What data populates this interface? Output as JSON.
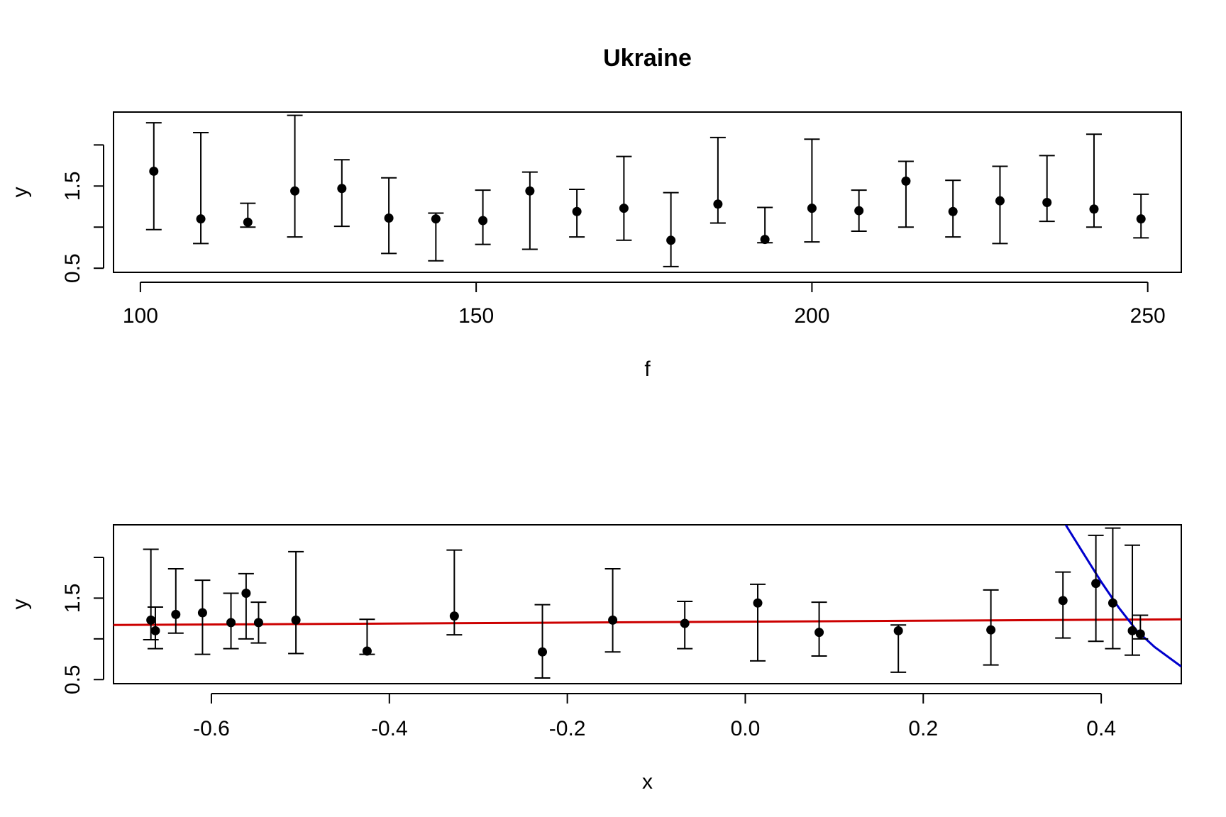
{
  "chart_data": [
    {
      "type": "scatter",
      "title": "Ukraine",
      "xlabel": "f",
      "ylabel": "y",
      "xlim": [
        96,
        255
      ],
      "ylim": [
        0.45,
        2.4
      ],
      "xticks": [
        100,
        150,
        200,
        250
      ],
      "yticks": [
        0.5,
        1.5
      ],
      "x_tick_labels": [
        "100",
        "150",
        "200",
        "250"
      ],
      "y_tick_labels": [
        "0.5",
        "1.5"
      ],
      "grid": false,
      "points": [
        {
          "x": 102,
          "y": 1.68,
          "lo": 0.97,
          "hi": 2.27
        },
        {
          "x": 109,
          "y": 1.1,
          "lo": 0.8,
          "hi": 2.15
        },
        {
          "x": 116,
          "y": 1.06,
          "lo": 1.0,
          "hi": 1.29
        },
        {
          "x": 123,
          "y": 1.44,
          "lo": 0.88,
          "hi": 2.36
        },
        {
          "x": 130,
          "y": 1.47,
          "lo": 1.01,
          "hi": 1.82
        },
        {
          "x": 137,
          "y": 1.11,
          "lo": 0.68,
          "hi": 1.6
        },
        {
          "x": 144,
          "y": 1.1,
          "lo": 0.59,
          "hi": 1.17
        },
        {
          "x": 151,
          "y": 1.08,
          "lo": 0.79,
          "hi": 1.45
        },
        {
          "x": 158,
          "y": 1.44,
          "lo": 0.73,
          "hi": 1.67
        },
        {
          "x": 165,
          "y": 1.19,
          "lo": 0.88,
          "hi": 1.46
        },
        {
          "x": 172,
          "y": 1.23,
          "lo": 0.84,
          "hi": 1.86
        },
        {
          "x": 179,
          "y": 0.84,
          "lo": 0.52,
          "hi": 1.42
        },
        {
          "x": 186,
          "y": 1.28,
          "lo": 1.05,
          "hi": 2.09
        },
        {
          "x": 193,
          "y": 0.85,
          "lo": 0.81,
          "hi": 1.24
        },
        {
          "x": 200,
          "y": 1.23,
          "lo": 0.82,
          "hi": 2.07
        },
        {
          "x": 207,
          "y": 1.2,
          "lo": 0.95,
          "hi": 1.45
        },
        {
          "x": 214,
          "y": 1.56,
          "lo": 1.0,
          "hi": 1.8
        },
        {
          "x": 221,
          "y": 1.19,
          "lo": 0.88,
          "hi": 1.57
        },
        {
          "x": 228,
          "y": 1.32,
          "lo": 0.8,
          "hi": 1.74
        },
        {
          "x": 235,
          "y": 1.3,
          "lo": 1.07,
          "hi": 1.87
        },
        {
          "x": 242,
          "y": 1.22,
          "lo": 1.0,
          "hi": 2.13
        },
        {
          "x": 249,
          "y": 1.1,
          "lo": 0.87,
          "hi": 1.4
        }
      ]
    },
    {
      "type": "scatter",
      "title": "",
      "xlabel": "x",
      "ylabel": "y",
      "xlim": [
        -0.71,
        0.49
      ],
      "ylim": [
        0.45,
        2.4
      ],
      "xticks": [
        -0.6,
        -0.4,
        -0.2,
        0.0,
        0.2,
        0.4
      ],
      "yticks": [
        0.5,
        1.5
      ],
      "x_tick_labels": [
        "-0.6",
        "-0.4",
        "-0.2",
        "0.0",
        "0.2",
        "0.4"
      ],
      "y_tick_labels": [
        "0.5",
        "1.5"
      ],
      "grid": false,
      "points": [
        {
          "x": -0.668,
          "y": 1.23,
          "lo": 0.99,
          "hi": 2.1
        },
        {
          "x": -0.663,
          "y": 1.1,
          "lo": 0.88,
          "hi": 1.39
        },
        {
          "x": -0.64,
          "y": 1.3,
          "lo": 1.07,
          "hi": 1.86
        },
        {
          "x": -0.61,
          "y": 1.32,
          "lo": 0.81,
          "hi": 1.72
        },
        {
          "x": -0.578,
          "y": 1.2,
          "lo": 0.88,
          "hi": 1.56
        },
        {
          "x": -0.561,
          "y": 1.56,
          "lo": 1.0,
          "hi": 1.8
        },
        {
          "x": -0.547,
          "y": 1.2,
          "lo": 0.95,
          "hi": 1.45
        },
        {
          "x": -0.505,
          "y": 1.23,
          "lo": 0.82,
          "hi": 2.07
        },
        {
          "x": -0.425,
          "y": 0.85,
          "lo": 0.81,
          "hi": 1.24
        },
        {
          "x": -0.327,
          "y": 1.28,
          "lo": 1.05,
          "hi": 2.09
        },
        {
          "x": -0.228,
          "y": 0.84,
          "lo": 0.52,
          "hi": 1.42
        },
        {
          "x": -0.149,
          "y": 1.23,
          "lo": 0.84,
          "hi": 1.86
        },
        {
          "x": -0.068,
          "y": 1.19,
          "lo": 0.88,
          "hi": 1.46
        },
        {
          "x": 0.014,
          "y": 1.44,
          "lo": 0.73,
          "hi": 1.67
        },
        {
          "x": 0.083,
          "y": 1.08,
          "lo": 0.79,
          "hi": 1.45
        },
        {
          "x": 0.172,
          "y": 1.1,
          "lo": 0.59,
          "hi": 1.17
        },
        {
          "x": 0.276,
          "y": 1.11,
          "lo": 0.68,
          "hi": 1.6
        },
        {
          "x": 0.357,
          "y": 1.47,
          "lo": 1.01,
          "hi": 1.82
        },
        {
          "x": 0.394,
          "y": 1.68,
          "lo": 0.97,
          "hi": 2.27
        },
        {
          "x": 0.413,
          "y": 1.44,
          "lo": 0.88,
          "hi": 2.36
        },
        {
          "x": 0.435,
          "y": 1.1,
          "lo": 0.8,
          "hi": 2.15
        },
        {
          "x": 0.444,
          "y": 1.06,
          "lo": 1.0,
          "hi": 1.29
        }
      ],
      "lines": [
        {
          "color": "#cc0000",
          "x": [
            -0.71,
            0.49
          ],
          "y": [
            1.17,
            1.24
          ]
        },
        {
          "color": "#0000cc",
          "x": [
            0.36,
            0.38,
            0.4,
            0.42,
            0.44,
            0.46,
            0.49
          ],
          "y": [
            2.4,
            2.05,
            1.7,
            1.38,
            1.1,
            0.9,
            0.66
          ]
        }
      ]
    }
  ]
}
